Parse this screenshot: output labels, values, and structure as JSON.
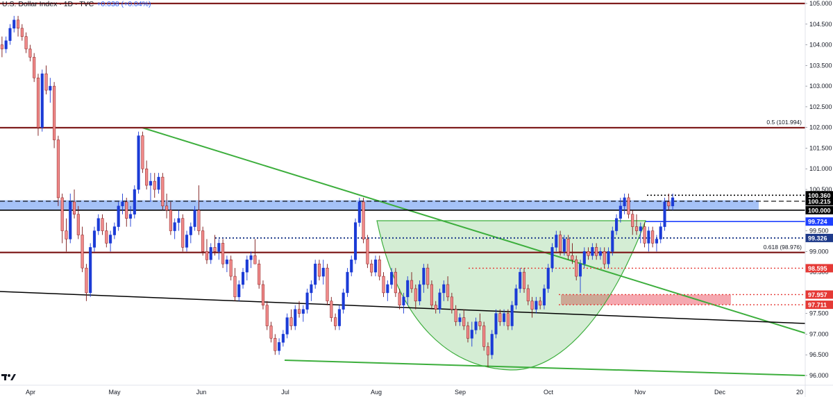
{
  "header": {
    "title": "U.S. Dollar Index · 1D · TVC",
    "change": "+0.038 (+0.04%)"
  },
  "colors": {
    "up": "#1b3bd6",
    "down": "#f08a8a",
    "resistance": "#7f1d1d",
    "trend": "#3cae3c",
    "zone": "#5b8ff0",
    "support": "#000000",
    "red_level": "#e53935",
    "blue_level": "#1e40ff"
  },
  "chart_data": {
    "type": "candlestick",
    "title": "U.S. Dollar Index · 1D · TVC",
    "ylim": [
      96.0,
      105.0
    ],
    "y_ticks": [
      "96.000",
      "96.500",
      "97.000",
      "97.500",
      "98.000",
      "98.500",
      "99.000",
      "99.500",
      "100.000",
      "100.500",
      "101.000",
      "101.500",
      "102.000",
      "102.500",
      "103.000",
      "103.500",
      "104.000",
      "104.500",
      "105.000"
    ],
    "x_ticks": [
      "Apr",
      "May",
      "Jun",
      "Jul",
      "Aug",
      "Sep",
      "Oct",
      "Nov",
      "Dec"
    ],
    "levels": [
      {
        "value": 105.0,
        "style": "resistance"
      },
      {
        "value": 101.994,
        "style": "resistance",
        "annotation": "0.5 (101.994)"
      },
      {
        "value": 98.976,
        "style": "resistance",
        "annotation": "0.618 (98.976)"
      },
      {
        "value": 100.0,
        "style": "solid-black",
        "tag": "100.000",
        "tag_color": "#000000"
      },
      {
        "value": 100.215,
        "style": "dashed-black",
        "tag": "100.215",
        "tag_color": "#000000"
      },
      {
        "value": 100.36,
        "style": "dotted-black",
        "tag": "100.360",
        "tag_color": "#000000"
      },
      {
        "value": 99.724,
        "style": "solid-blue",
        "tag": "99.724",
        "tag_color": "#1e40ff"
      },
      {
        "value": 99.326,
        "style": "dotted-blue",
        "tag": "99.326",
        "tag_color": "#1e3a8a"
      },
      {
        "value": 98.595,
        "style": "dotted-red",
        "tag": "98.595",
        "tag_color": "#e53935"
      },
      {
        "value": 97.957,
        "style": "dotted-red",
        "tag": "97.957",
        "tag_color": "#e53935"
      },
      {
        "value": 97.711,
        "style": "dotted-red",
        "tag": "97.711",
        "tag_color": "#e53935"
      }
    ],
    "zones": [
      {
        "y1": 100.0,
        "y2": 100.24,
        "label": "blue resistance zone"
      },
      {
        "y1": 97.711,
        "y2": 97.957,
        "label": "red support zone"
      }
    ],
    "candles": [
      [
        104.0,
        104.2,
        103.7,
        103.9
      ],
      [
        103.9,
        104.2,
        103.8,
        104.1
      ],
      [
        104.1,
        104.5,
        104.0,
        104.4
      ],
      [
        104.4,
        104.7,
        104.3,
        104.6
      ],
      [
        104.6,
        104.7,
        104.2,
        104.4
      ],
      [
        104.4,
        104.5,
        104.1,
        104.2
      ],
      [
        104.2,
        104.3,
        103.8,
        103.9
      ],
      [
        103.9,
        104.0,
        103.6,
        103.7
      ],
      [
        103.7,
        103.8,
        103.1,
        103.2
      ],
      [
        103.2,
        103.3,
        101.8,
        102.0
      ],
      [
        102.0,
        103.4,
        101.9,
        103.3
      ],
      [
        103.3,
        103.5,
        102.8,
        102.9
      ],
      [
        102.9,
        103.2,
        102.6,
        103.0
      ],
      [
        103.0,
        103.1,
        101.5,
        101.7
      ],
      [
        101.7,
        101.8,
        100.1,
        100.3
      ],
      [
        100.3,
        100.4,
        99.2,
        99.5
      ],
      [
        99.5,
        99.8,
        99.0,
        99.3
      ],
      [
        99.3,
        100.4,
        99.2,
        100.2
      ],
      [
        100.2,
        100.5,
        99.8,
        99.9
      ],
      [
        99.9,
        100.1,
        99.3,
        99.4
      ],
      [
        99.4,
        99.6,
        98.5,
        98.6
      ],
      [
        98.6,
        98.7,
        97.8,
        98.0
      ],
      [
        98.0,
        99.2,
        97.9,
        99.1
      ],
      [
        99.1,
        99.6,
        99.0,
        99.5
      ],
      [
        99.5,
        99.9,
        99.4,
        99.8
      ],
      [
        99.8,
        99.9,
        99.4,
        99.5
      ],
      [
        99.5,
        99.7,
        99.1,
        99.2
      ],
      [
        99.2,
        99.5,
        99.0,
        99.4
      ],
      [
        99.4,
        99.7,
        99.3,
        99.6
      ],
      [
        99.6,
        100.2,
        99.5,
        100.1
      ],
      [
        100.1,
        100.4,
        99.9,
        100.2
      ],
      [
        100.2,
        100.3,
        99.6,
        99.8
      ],
      [
        99.8,
        100.1,
        99.6,
        99.9
      ],
      [
        99.9,
        100.6,
        99.8,
        100.5
      ],
      [
        100.5,
        101.9,
        100.4,
        101.8
      ],
      [
        101.8,
        101.9,
        100.9,
        101.0
      ],
      [
        101.0,
        101.2,
        100.5,
        100.6
      ],
      [
        100.6,
        100.9,
        100.2,
        100.7
      ],
      [
        100.7,
        100.9,
        100.3,
        100.5
      ],
      [
        100.5,
        100.9,
        100.4,
        100.8
      ],
      [
        100.8,
        100.9,
        100.0,
        100.1
      ],
      [
        100.1,
        100.4,
        99.8,
        100.0
      ],
      [
        100.0,
        100.2,
        99.4,
        99.5
      ],
      [
        99.5,
        99.8,
        99.3,
        99.7
      ],
      [
        99.7,
        100.0,
        99.5,
        99.8
      ],
      [
        99.8,
        99.9,
        99.0,
        99.1
      ],
      [
        99.1,
        99.5,
        99.0,
        99.4
      ],
      [
        99.4,
        99.7,
        99.2,
        99.6
      ],
      [
        99.6,
        100.1,
        99.5,
        100.0
      ],
      [
        100.0,
        100.6,
        99.4,
        99.5
      ],
      [
        99.5,
        99.6,
        98.9,
        99.0
      ],
      [
        99.0,
        99.3,
        98.7,
        98.8
      ],
      [
        98.8,
        99.2,
        98.7,
        99.1
      ],
      [
        99.1,
        99.4,
        98.9,
        99.0
      ],
      [
        99.0,
        99.3,
        98.8,
        99.2
      ],
      [
        99.2,
        99.3,
        98.6,
        98.7
      ],
      [
        98.7,
        98.9,
        98.5,
        98.8
      ],
      [
        98.8,
        98.9,
        98.3,
        98.4
      ],
      [
        98.4,
        98.6,
        97.8,
        97.9
      ],
      [
        97.9,
        98.3,
        97.8,
        98.2
      ],
      [
        98.2,
        98.6,
        98.1,
        98.5
      ],
      [
        98.5,
        98.9,
        98.3,
        98.8
      ],
      [
        98.8,
        99.0,
        98.6,
        98.9
      ],
      [
        98.9,
        99.3,
        98.7,
        98.7
      ],
      [
        98.7,
        98.8,
        98.1,
        98.2
      ],
      [
        98.2,
        98.3,
        97.6,
        97.7
      ],
      [
        97.7,
        97.8,
        97.1,
        97.2
      ],
      [
        97.2,
        97.3,
        96.8,
        96.9
      ],
      [
        96.9,
        97.0,
        96.5,
        96.6
      ],
      [
        96.6,
        96.9,
        96.5,
        96.8
      ],
      [
        96.8,
        97.1,
        96.7,
        97.0
      ],
      [
        97.0,
        97.5,
        96.9,
        97.4
      ],
      [
        97.4,
        97.6,
        97.1,
        97.2
      ],
      [
        97.2,
        97.7,
        97.1,
        97.6
      ],
      [
        97.6,
        97.8,
        97.4,
        97.5
      ],
      [
        97.5,
        97.7,
        97.3,
        97.6
      ],
      [
        97.6,
        98.1,
        97.5,
        98.0
      ],
      [
        98.0,
        98.3,
        97.8,
        98.2
      ],
      [
        98.2,
        98.8,
        98.1,
        98.7
      ],
      [
        98.7,
        98.8,
        98.3,
        98.4
      ],
      [
        98.4,
        98.8,
        98.2,
        98.6
      ],
      [
        98.6,
        98.7,
        97.7,
        97.8
      ],
      [
        97.8,
        97.9,
        97.3,
        97.4
      ],
      [
        97.4,
        97.5,
        97.1,
        97.2
      ],
      [
        97.2,
        97.7,
        97.1,
        97.6
      ],
      [
        97.6,
        98.1,
        97.5,
        98.0
      ],
      [
        98.0,
        98.6,
        97.9,
        98.5
      ],
      [
        98.5,
        98.9,
        98.4,
        98.8
      ],
      [
        98.8,
        99.8,
        98.7,
        99.7
      ],
      [
        99.7,
        100.3,
        99.6,
        100.2
      ],
      [
        100.2,
        100.3,
        99.2,
        99.3
      ],
      [
        99.3,
        99.4,
        98.6,
        98.7
      ],
      [
        98.7,
        98.8,
        98.4,
        98.5
      ],
      [
        98.5,
        98.9,
        98.4,
        98.8
      ],
      [
        98.8,
        98.9,
        98.3,
        98.4
      ],
      [
        98.4,
        98.5,
        97.9,
        98.0
      ],
      [
        98.0,
        98.3,
        97.8,
        98.2
      ],
      [
        98.2,
        98.6,
        98.1,
        98.5
      ],
      [
        98.5,
        98.6,
        97.9,
        98.0
      ],
      [
        98.0,
        98.1,
        97.6,
        97.7
      ],
      [
        97.7,
        98.0,
        97.5,
        97.9
      ],
      [
        97.9,
        98.4,
        97.7,
        98.3
      ],
      [
        98.3,
        98.5,
        98.0,
        98.1
      ],
      [
        98.1,
        98.2,
        97.6,
        97.8
      ],
      [
        97.8,
        98.3,
        97.7,
        98.2
      ],
      [
        98.2,
        98.7,
        98.0,
        98.6
      ],
      [
        98.6,
        98.7,
        98.1,
        98.2
      ],
      [
        98.2,
        98.3,
        97.6,
        97.7
      ],
      [
        97.7,
        97.8,
        97.5,
        97.6
      ],
      [
        97.6,
        98.1,
        97.5,
        98.0
      ],
      [
        98.0,
        98.3,
        97.8,
        98.2
      ],
      [
        98.2,
        98.4,
        97.8,
        97.9
      ],
      [
        97.9,
        98.0,
        97.5,
        97.6
      ],
      [
        97.6,
        97.7,
        97.2,
        97.3
      ],
      [
        97.3,
        97.5,
        97.2,
        97.4
      ],
      [
        97.4,
        97.6,
        97.1,
        97.2
      ],
      [
        97.2,
        97.3,
        96.8,
        96.9
      ],
      [
        96.9,
        97.3,
        96.7,
        97.1
      ],
      [
        97.1,
        97.4,
        97.0,
        97.3
      ],
      [
        97.3,
        97.5,
        97.1,
        97.2
      ],
      [
        97.2,
        97.3,
        96.6,
        96.7
      ],
      [
        96.7,
        96.8,
        96.2,
        96.5
      ],
      [
        96.5,
        97.1,
        96.4,
        97.0
      ],
      [
        97.0,
        97.6,
        96.9,
        97.5
      ],
      [
        97.5,
        97.6,
        97.2,
        97.3
      ],
      [
        97.3,
        97.6,
        97.2,
        97.5
      ],
      [
        97.5,
        97.6,
        97.1,
        97.2
      ],
      [
        97.2,
        97.8,
        97.1,
        97.7
      ],
      [
        97.7,
        98.2,
        97.6,
        98.1
      ],
      [
        98.1,
        98.6,
        98.0,
        98.5
      ],
      [
        98.5,
        98.6,
        98.0,
        98.1
      ],
      [
        98.1,
        98.2,
        97.7,
        97.8
      ],
      [
        97.8,
        97.9,
        97.4,
        97.6
      ],
      [
        97.6,
        97.9,
        97.5,
        97.8
      ],
      [
        97.8,
        97.9,
        97.6,
        97.7
      ],
      [
        97.7,
        98.2,
        97.6,
        98.1
      ],
      [
        98.1,
        98.7,
        98.0,
        98.6
      ],
      [
        98.6,
        99.2,
        98.5,
        99.1
      ],
      [
        99.1,
        99.5,
        99.0,
        99.4
      ],
      [
        99.4,
        99.5,
        98.9,
        99.0
      ],
      [
        99.0,
        99.4,
        98.9,
        99.3
      ],
      [
        99.3,
        99.4,
        98.8,
        98.9
      ],
      [
        98.9,
        99.2,
        98.7,
        98.8
      ],
      [
        98.8,
        98.9,
        98.3,
        98.4
      ],
      [
        98.4,
        98.8,
        98.0,
        98.7
      ],
      [
        98.7,
        99.1,
        98.6,
        99.0
      ],
      [
        99.0,
        99.1,
        98.8,
        98.9
      ],
      [
        98.9,
        99.2,
        98.8,
        99.1
      ],
      [
        99.1,
        99.2,
        98.8,
        98.9
      ],
      [
        98.9,
        99.1,
        98.8,
        99.0
      ],
      [
        99.0,
        99.1,
        98.6,
        98.7
      ],
      [
        98.7,
        99.1,
        98.6,
        99.0
      ],
      [
        99.0,
        99.6,
        98.9,
        99.5
      ],
      [
        99.5,
        99.9,
        99.4,
        99.8
      ],
      [
        99.8,
        100.3,
        99.7,
        100.1
      ],
      [
        100.1,
        100.4,
        99.9,
        100.3
      ],
      [
        100.3,
        100.4,
        99.8,
        99.9
      ],
      [
        99.9,
        100.0,
        99.4,
        99.6
      ],
      [
        99.6,
        99.9,
        99.4,
        99.5
      ],
      [
        99.5,
        99.7,
        99.2,
        99.6
      ],
      [
        99.6,
        99.7,
        99.1,
        99.2
      ],
      [
        99.2,
        99.6,
        99.0,
        99.5
      ],
      [
        99.5,
        99.6,
        99.1,
        99.2
      ],
      [
        99.2,
        99.4,
        99.0,
        99.3
      ],
      [
        99.3,
        99.7,
        99.2,
        99.6
      ],
      [
        99.6,
        100.3,
        99.5,
        100.2
      ],
      [
        100.2,
        100.4,
        100.0,
        100.1
      ],
      [
        100.1,
        100.4,
        100.0,
        100.3
      ]
    ],
    "x_range": [
      -0.5,
      200
    ]
  }
}
